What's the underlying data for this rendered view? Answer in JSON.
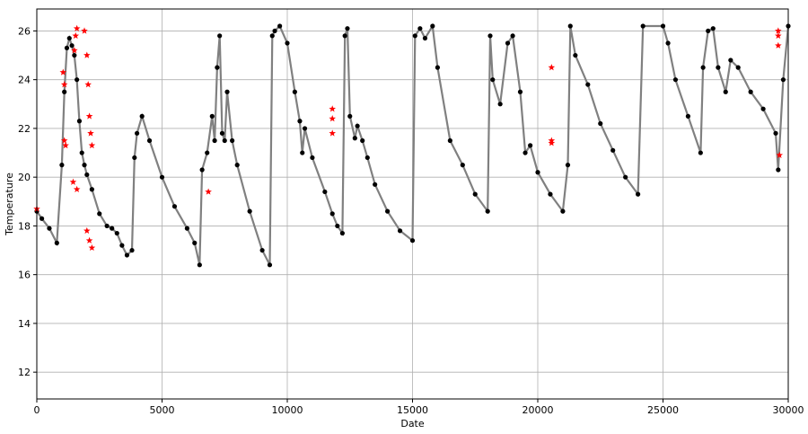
{
  "chart_data": {
    "type": "scatter",
    "title": "",
    "xlabel": "Date",
    "ylabel": "Temperature",
    "xlim": [
      0,
      30000
    ],
    "ylim": [
      10.9,
      26.9
    ],
    "xticks": [
      0,
      5000,
      10000,
      15000,
      20000,
      25000,
      30000
    ],
    "yticks": [
      12,
      14,
      16,
      18,
      20,
      22,
      24,
      26
    ],
    "grid": true,
    "colors": {
      "line": "#808080",
      "points": "#000000",
      "outliers": "#ff0000"
    },
    "series": [
      {
        "marker": "dot-with-line",
        "x": [
          0,
          200,
          500,
          800,
          1000,
          1100,
          1200,
          1300,
          1400,
          1500,
          1600,
          1700,
          1800,
          1900,
          2000,
          2200,
          2500,
          2800,
          3000,
          3200,
          3400,
          3600,
          3800,
          3900,
          4000,
          4200,
          4500,
          5000,
          5500,
          6000,
          6300,
          6500,
          6600,
          6800,
          7000,
          7100,
          7200,
          7300,
          7400,
          7500,
          7600,
          7800,
          8000,
          8500,
          9000,
          9300,
          9400,
          9500,
          9700,
          10000,
          10300,
          10500,
          10600,
          10700,
          11000,
          11500,
          11800,
          12000,
          12200,
          12300,
          12400,
          12500,
          12700,
          12800,
          13000,
          13200,
          13500,
          14000,
          14500,
          15000,
          15100,
          15300,
          15500,
          15800,
          16000,
          16500,
          17000,
          17500,
          18000,
          18100,
          18200,
          18500,
          18800,
          19000,
          19300,
          19500,
          19700,
          20000,
          20500,
          21000,
          21200,
          21300,
          21500,
          22000,
          22500,
          23000,
          23500,
          24000,
          24200,
          25000,
          25200,
          25500,
          26000,
          26500,
          26600,
          26800,
          27000,
          27200,
          27500,
          27700,
          28000,
          28500,
          29000,
          29500,
          29600,
          29800,
          30000
        ],
        "y": [
          18.6,
          18.3,
          17.9,
          17.3,
          20.5,
          23.5,
          25.3,
          25.7,
          25.4,
          25.0,
          24.0,
          22.3,
          21.0,
          20.5,
          20.1,
          19.5,
          18.5,
          18.0,
          17.9,
          17.7,
          17.2,
          16.8,
          17.0,
          20.8,
          21.8,
          22.5,
          21.5,
          20.0,
          18.8,
          17.9,
          17.3,
          16.4,
          20.3,
          21.0,
          22.5,
          21.5,
          24.5,
          25.8,
          21.8,
          21.5,
          23.5,
          21.5,
          20.5,
          18.6,
          17.0,
          16.4,
          25.8,
          26.0,
          26.2,
          25.5,
          23.5,
          22.3,
          21.0,
          22.0,
          20.8,
          19.4,
          18.5,
          18.0,
          17.7,
          25.8,
          26.1,
          22.5,
          21.6,
          22.1,
          21.5,
          20.8,
          19.7,
          18.6,
          17.8,
          17.4,
          25.8,
          26.1,
          25.7,
          26.2,
          24.5,
          21.5,
          20.5,
          19.3,
          18.6,
          25.8,
          24.0,
          23.0,
          25.5,
          25.8,
          23.5,
          21.0,
          21.3,
          20.2,
          19.3,
          18.6,
          20.5,
          26.2,
          25.0,
          23.8,
          22.2,
          21.1,
          20.0,
          19.3,
          26.2,
          26.2,
          25.5,
          24.0,
          22.5,
          21.0,
          24.5,
          26.0,
          26.1,
          24.5,
          23.5,
          24.8,
          24.5,
          23.5,
          22.8,
          21.8,
          20.3,
          24.0,
          26.2
        ]
      },
      {
        "marker": "star",
        "x": [
          0,
          1050,
          1100,
          1100,
          1150,
          1450,
          1500,
          1550,
          1600,
          1600,
          1900,
          2000,
          2050,
          2100,
          2150,
          2200,
          2000,
          2100,
          2200,
          6850,
          11800,
          11800,
          11800,
          20550,
          20550,
          20550,
          29600,
          29600,
          29600,
          29650
        ],
        "y": [
          18.7,
          24.3,
          21.5,
          23.8,
          21.3,
          19.8,
          25.2,
          25.8,
          26.1,
          19.5,
          26.0,
          25.0,
          23.8,
          22.5,
          21.8,
          21.3,
          17.8,
          17.4,
          17.1,
          19.4,
          22.8,
          22.4,
          21.8,
          24.5,
          21.5,
          21.4,
          26.0,
          25.8,
          25.4,
          20.9
        ]
      }
    ]
  }
}
